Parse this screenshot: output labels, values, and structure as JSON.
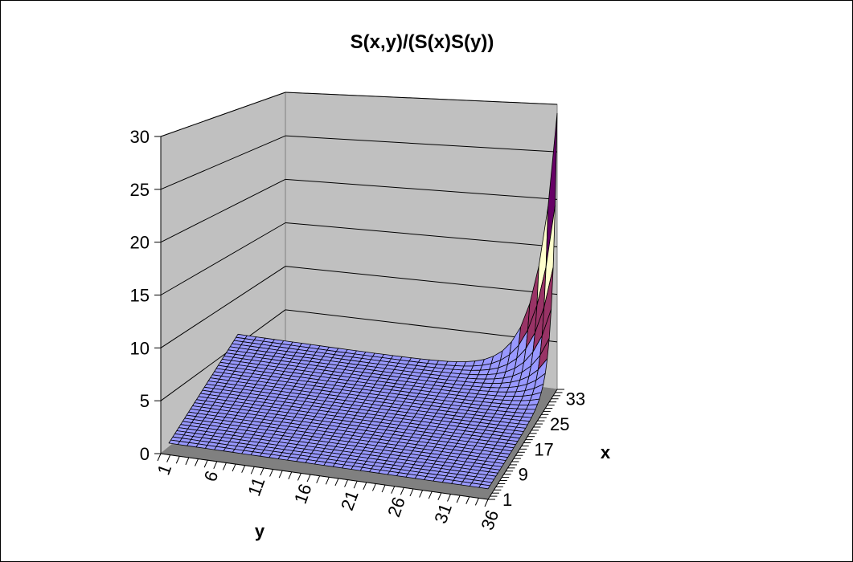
{
  "chart_data": {
    "type": "surface",
    "title": "S(x,y)/(S(x)S(y))",
    "zlabel": "",
    "xlabel": "x",
    "ylabel": "y",
    "z_axis": {
      "ticks": [
        0,
        5,
        10,
        15,
        20,
        25,
        30
      ],
      "range": [
        0,
        30
      ]
    },
    "y_axis": {
      "ticks": [
        1,
        6,
        11,
        16,
        21,
        26,
        31,
        36
      ],
      "range": [
        1,
        36
      ]
    },
    "x_axis": {
      "ticks": [
        1,
        9,
        17,
        25,
        33
      ],
      "range": [
        1,
        36
      ]
    },
    "surface": {
      "description_free": true,
      "base_level": 1.0,
      "peak_value": 29,
      "peak_location": {
        "x": 36,
        "y": 36
      },
      "approx_values": [
        {
          "x": 1,
          "y": 1,
          "z": 1
        },
        {
          "x": 36,
          "y": 1,
          "z": 1
        },
        {
          "x": 1,
          "y": 36,
          "z": 1
        },
        {
          "x": 30,
          "y": 36,
          "z": 2
        },
        {
          "x": 33,
          "y": 36,
          "z": 5
        },
        {
          "x": 35,
          "y": 36,
          "z": 12
        },
        {
          "x": 36,
          "y": 36,
          "z": 29
        }
      ]
    },
    "color_bands": [
      {
        "range": [
          0,
          5
        ],
        "color": "#9999ff"
      },
      {
        "range": [
          5,
          10
        ],
        "color": "#993366"
      },
      {
        "range": [
          10,
          15
        ],
        "color": "#ffffcc"
      },
      {
        "range": [
          15,
          20
        ],
        "color": "#ccffff"
      },
      {
        "range": [
          20,
          25
        ],
        "color": "#660066"
      },
      {
        "range": [
          25,
          30
        ],
        "color": "#ff8080"
      }
    ],
    "wall_color": "#c0c0c0",
    "floor_color": "#808080",
    "grid": true
  }
}
